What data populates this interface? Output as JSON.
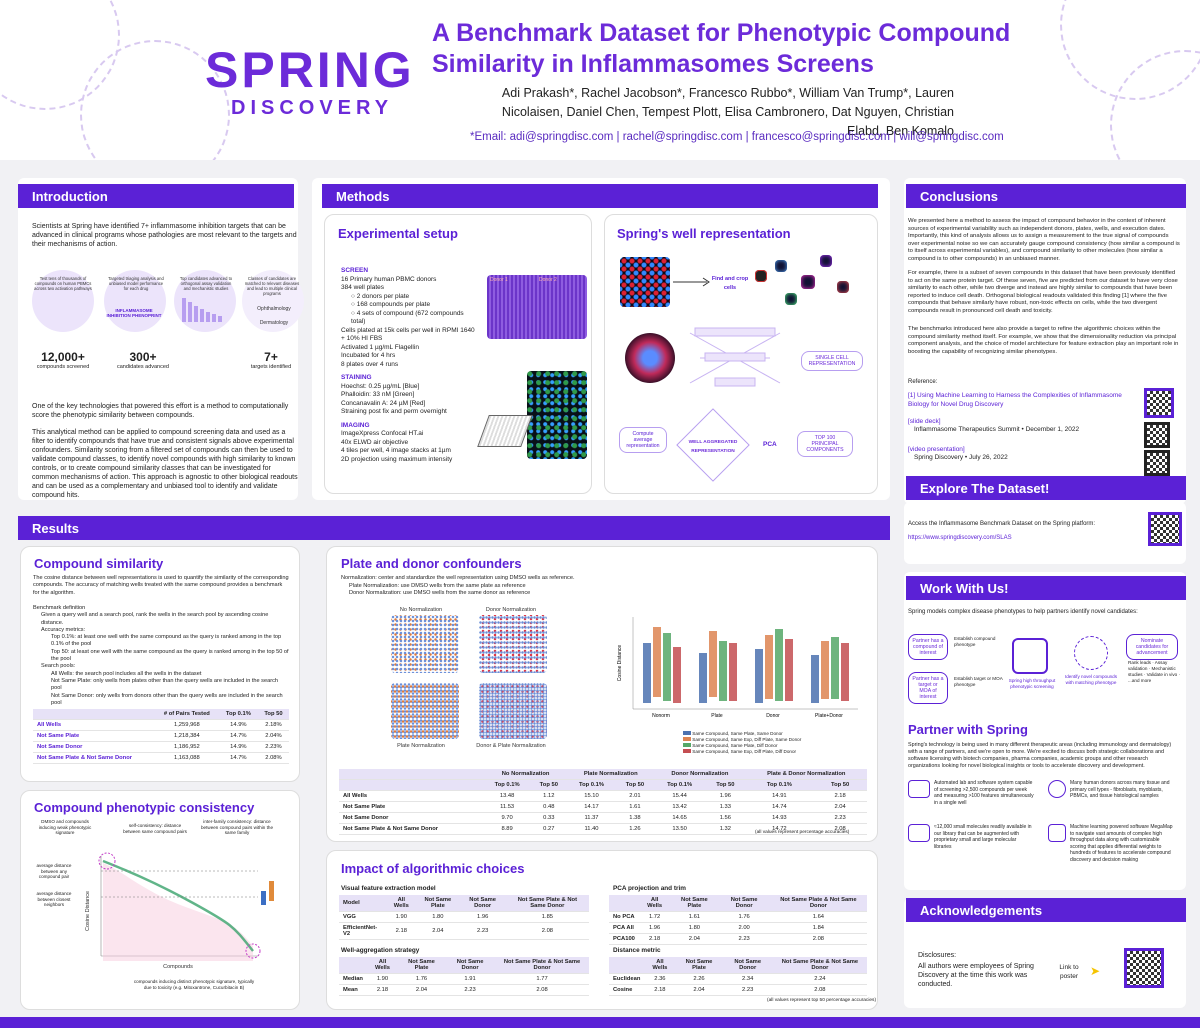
{
  "header": {
    "logo_top": "SPRING",
    "logo_bottom": "DISCOVERY",
    "title": "A Benchmark Dataset for Phenotypic Compound Similarity in Inflammasomes Screens",
    "authors": "Adi Prakash*, Rachel Jacobson*, Francesco Rubbo*, William Van Trump*, Lauren Nicolaisen, Daniel Chen, Tempest Plott, Elisa Cambronero, Dat Nguyen, Christian Elabd, Ben Komalo",
    "email": "*Email: adi@springdisc.com | rachel@springdisc.com | francesco@springdisc.com | will@springdisc.com"
  },
  "intro": {
    "heading": "Introduction",
    "p1": "Scientists at Spring have identified 7+ inflammasome inhibition targets that can be advanced in clinical programs whose pathologies are most relevant to the targets and their mechanisms of action.",
    "stats": [
      {
        "value": "12,000+",
        "label": "compounds screened"
      },
      {
        "value": "300+",
        "label": "candidates advanced"
      },
      {
        "value": "7+",
        "label": "targets identified"
      }
    ],
    "funnel": [
      "Test tens of thousands of compounds on human PBMCs across two activation pathways",
      "Targeted triaging analysis and unbiased model performance for each drug",
      "Top candidates advanced to orthogonal assay validation and mechanistic studies",
      "Classes of candidates are matched to relevant diseases and lead to multiple clinical programs"
    ],
    "funnel_center": "INFLAMMASOME INHIBITION PHENOPRINT",
    "funnel_right": [
      "Ophthalmology",
      "Dermatology"
    ],
    "p2": "One of the key technologies that powered this effort is a method to computationally score the phenotypic similarity between compounds.",
    "p3": "This analytical method can be applied to compound screening data and used as a filter to identify compounds that have true and consistent signals above experimental confounders. Similarity scoring from a filtered set of compounds can then be used to validate compound classes, to identify novel compounds with high similarity to known controls, or to create compound similarity classes that can be investigated for common mechanisms of action. This approach is agnostic to other biological readouts and can be used as a complementary and unbiased tool to identify and validate compound hits."
  },
  "methods": {
    "heading": "Methods",
    "setup_title": "Experimental setup",
    "screen_label": "SCREEN",
    "screen_items": [
      "16 Primary human PBMC donors",
      "384 well plates",
      "○ 2 donors per plate",
      "○ 168 compounds per plate",
      "○ 4 sets of compound (672 compounds total)",
      "Cells plated at 15k cells per well in RPMI 1640 + 10% HI FBS",
      "Activated 1 µg/mL Flagellin",
      "Incubated for 4 hrs",
      "8 plates over 4 runs"
    ],
    "plate_labels": [
      "Donor 1",
      "Donor 2"
    ],
    "staining_label": "STAINING",
    "staining_items": [
      "Hoechst: 0.25 µg/mL [Blue]",
      "Phalloidin: 33 nM [Green]",
      "Concanavalin A: 24 µM [Red]",
      "Straining post fix and perm overnight"
    ],
    "imaging_label": "IMAGING",
    "imaging_items": [
      "ImageXpress Confocal HT.ai",
      "40x ELWD air objective",
      "4 tiles per well, 4 image stacks at 1µm",
      "2D projection using maximum intensity"
    ],
    "well_title": "Spring's well representation",
    "flow": [
      "Find and crop cells",
      "SINGLE CELL REPRESENTATION",
      "Compute average representation",
      "WELL AGGREGATED REPRESENTATION",
      "PCA",
      "TOP 100 PRINCIPAL COMPONENTS"
    ]
  },
  "conclusions": {
    "heading": "Conclusions",
    "p1": "We presented here a method to assess the impact of compound behavior in the context of inherent sources of experimental variability such as independent donors, plates, wells, and execution dates. Importantly, this kind of analysis allows us to assign a measurement to the true signal of compounds over experimental noise so we can accurately gauge compound consistency (how similar a compound is to itself across experimental variables), and compound similarity to other molecules (how similar a compound is to other compounds) in an unbiased manner.",
    "p2": "For example, there is a subset of seven compounds in this dataset that have been previously identified to act on the same protein target. Of these seven, five are predicted from our dataset to have very close similarity to each other, while two diverge and instead are highly similar to compounds that have been reported to induce cell death. Orthogonal biological readouts validated this finding [1] where the five compounds that behave similarly have robust, non-toxic effects on cells, while the two divergent compounds result in pronounced cell death and toxicity.",
    "p3": "The benchmarks introduced here also provide a target to refine the algorithmic choices within the compound similarity method itself. For example, we show that the dimensionality reduction via principal component analysis, and the choice of model architecture for feature extraction play an important role in boosting the capability of recognizing similar phenotypes.",
    "ref_label": "Reference:",
    "ref1": "[1] Using Machine Learning to Harness the Complexities of Inflammasome Biology for Novel Drug Discovery",
    "ref2a": "[slide deck]",
    "ref2b": "Inflammasome Therapeutics Summit • December 1, 2022",
    "ref3a": "[video presentation]",
    "ref3b": "Spring Discovery • July 26, 2022"
  },
  "explore": {
    "heading": "Explore The Dataset!",
    "text": "Access the Inflammasome Benchmark Dataset on the Spring platform:",
    "link": "https://www.springdiscovery.com/SLAS"
  },
  "work": {
    "heading": "Work With Us!",
    "text": "Spring models complex disease phenotypes to help partners identify novel candidates:",
    "flow": [
      "Partner has a compound of interest",
      "Establish compound phenotype",
      "Partner has a target or MOA of interest",
      "Establish target or MOA phenotype",
      "Spring high throughput phenotypic screening",
      "Identify novel compounds with matching phenotype",
      "Nominate candidates for advancement"
    ],
    "outputs": "Rank leads · Assay validation · Mechanistic studies · Validate in vivo · ...and more"
  },
  "partner": {
    "heading": "Partner with Spring",
    "text": "Spring's technology is being used in many different therapeutic areas (including immunology and dermatology) with a range of partners, and we're open to more. We're excited to discuss both strategic collaborations and software licensing with biotech companies, pharma companies, academic groups and other research organizations looking for novel biological insights or tools to accelerate discovery and development.",
    "items": [
      "Automated lab and software system capable of screening >2,500 compounds per week and measuring >100 features simultaneously in a single well",
      "Many human donors across many tissue and primary cell types - fibroblasts, myoblasts, PBMCs, and tissue histological samples",
      "≈12,000 small molecules readily available in our library that can be augmented with proprietary small and large molecular libraries",
      "Machine learning powered software MegaMap to navigate vast amounts of complex high throughput data along with customizable scoring that applies differential weights to hundreds of features to accelerate compound discovery and decision making"
    ]
  },
  "ack": {
    "heading": "Acknowledgements",
    "disclosures_label": "Disclosures:",
    "text": "All authors were employees of Spring Discovery at the time this work was conducted.",
    "link": "Link to poster"
  },
  "results": {
    "heading": "Results",
    "sim_title": "Compound similarity",
    "sim_text": "The cosine distance between well representations is used to quantify the similarity of the corresponding compounds. The accuracy of matching wells treated with the same compound provides a benchmark for the algorithm.",
    "bench_label": "Benchmark definition",
    "bench_items": [
      "Given a query well and a search pool, rank the wells in the search pool by ascending cosine distance.",
      "Accuracy metrics:",
      "Top 0.1%: at least one well with the same compound as the query is ranked among in the top 0.1% of the pool",
      "Top 50: at least one well with the same compound as the query is ranked among in the top 50 of the pool",
      "Search pools:",
      "All Wells: the search pool includes all the wells in the dataset",
      "Not Same Plate: only wells from plates other than the query wells are included in the search pool",
      "Not Same Donor: only wells from donors other than the query wells are included in the search pool"
    ],
    "sim_table": {
      "headers": [
        "",
        "# of Pairs Tested",
        "Top 0.1%",
        "Top 50"
      ],
      "rows": [
        [
          "All Wells",
          "1,259,968",
          "14.9%",
          "2.18%"
        ],
        [
          "Not Same Plate",
          "1,218,384",
          "14.7%",
          "2.04%"
        ],
        [
          "Not Same Donor",
          "1,186,952",
          "14.9%",
          "2.23%"
        ],
        [
          "Not Same Plate & Not Same Donor",
          "1,163,088",
          "14.7%",
          "2.08%"
        ]
      ]
    },
    "cons_title": "Compound phenotypic consistency",
    "cons_ann": [
      "DMSO and compounds inducing weak phenotypic signature",
      "self-consistency: distance between same compound pairs",
      "inter-family consistency: distance between compound pairs within the same family",
      "average distance between any compound pair",
      "average distance between closest neighbors",
      "compounds inducing distinct phenotypic signature, typically due to toxicity (e.g. Mitoxantrone, Cucurbitacin B)"
    ],
    "cons_xlabel": "Compounds",
    "cons_ylabel": "Cosine Distance",
    "plate_title": "Plate and donor confounders",
    "plate_text": "Normalization: center and standardize the well representation using DMSO wells as reference.",
    "plate_items": [
      "Plate Normalization: use DMSO wells from the same plate as reference",
      "Donor Normalization: use DMSO wells from the same donor as reference"
    ],
    "umap_titles": [
      "No Normalization",
      "Donor Normalization",
      "Plate Normalization",
      "Donor & Plate Normalization"
    ],
    "legend_box": [
      "Same Compound, Same Plate, Same Donor",
      "Same Compound, Same Exp, Diff Plate, Same Donor",
      "Same Compound, Same Plate, Diff Donor",
      "Same Compound, Same Exp, Diff Plate, Diff Donor"
    ],
    "box_x": [
      "Nonorm",
      "Plate",
      "Donor",
      "Plate+Donor"
    ],
    "box_ylabel": "Cosine Distance",
    "plate_table": {
      "groups": [
        "No Normalization",
        "Plate Normalization",
        "Donor Normalization",
        "Plate & Donor Normalization"
      ],
      "sub": [
        "Top 0.1%",
        "Top 50"
      ],
      "rows": [
        [
          "All Wells",
          "13.48",
          "1.12",
          "15.10",
          "2.01",
          "15.44",
          "1.96",
          "14.91",
          "2.18"
        ],
        [
          "Not Same Plate",
          "11.53",
          "0.48",
          "14.17",
          "1.61",
          "13.42",
          "1.33",
          "14.74",
          "2.04"
        ],
        [
          "Not Same Donor",
          "9.70",
          "0.33",
          "11.37",
          "1.38",
          "14.65",
          "1.56",
          "14.93",
          "2.23"
        ],
        [
          "Not Same Plate & Not Same Donor",
          "8.89",
          "0.27",
          "11.40",
          "1.26",
          "13.50",
          "1.32",
          "14.72",
          "2.08"
        ]
      ],
      "note": "(all values represent percentage accuracies)"
    },
    "impact_title": "Impact of algorithmic choices",
    "vfe": {
      "title": "Visual feature extraction model",
      "headers": [
        "Model",
        "All Wells",
        "Not Same Plate",
        "Not Same Donor",
        "Not Same Plate & Not Same Donor"
      ],
      "rows": [
        [
          "VGG",
          "1.90",
          "1.80",
          "1.96",
          "1.85"
        ],
        [
          "EfficientNet-V2",
          "2.18",
          "2.04",
          "2.23",
          "2.08"
        ]
      ]
    },
    "pca": {
      "title": "PCA projection and trim",
      "headers": [
        "",
        "All Wells",
        "Not Same Plate",
        "Not Same Donor",
        "Not Same Plate & Not Same Donor"
      ],
      "rows": [
        [
          "No PCA",
          "1.72",
          "1.61",
          "1.76",
          "1.64"
        ],
        [
          "PCA All",
          "1.96",
          "1.80",
          "2.00",
          "1.84"
        ],
        [
          "PCA100",
          "2.18",
          "2.04",
          "2.23",
          "2.08"
        ]
      ]
    },
    "agg": {
      "title": "Well-aggregation strategy",
      "headers": [
        "",
        "All Wells",
        "Not Same Plate",
        "Not Same Donor",
        "Not Same Plate & Not Same Donor"
      ],
      "rows": [
        [
          "Median",
          "1.90",
          "1.76",
          "1.91",
          "1.77"
        ],
        [
          "Mean",
          "2.18",
          "2.04",
          "2.23",
          "2.08"
        ]
      ]
    },
    "dist": {
      "title": "Distance metric",
      "headers": [
        "",
        "All Wells",
        "Not Same Plate",
        "Not Same Donor",
        "Not Same Plate & Not Same Donor"
      ],
      "rows": [
        [
          "Euclidean",
          "2.36",
          "2.26",
          "2.34",
          "2.24"
        ],
        [
          "Cosine",
          "2.18",
          "2.04",
          "2.23",
          "2.08"
        ]
      ]
    },
    "impact_note": "(all values represent top 50 percentage accuracies)"
  },
  "colors": {
    "accent": "#5b21d6",
    "brand": "#6c2bd9"
  }
}
